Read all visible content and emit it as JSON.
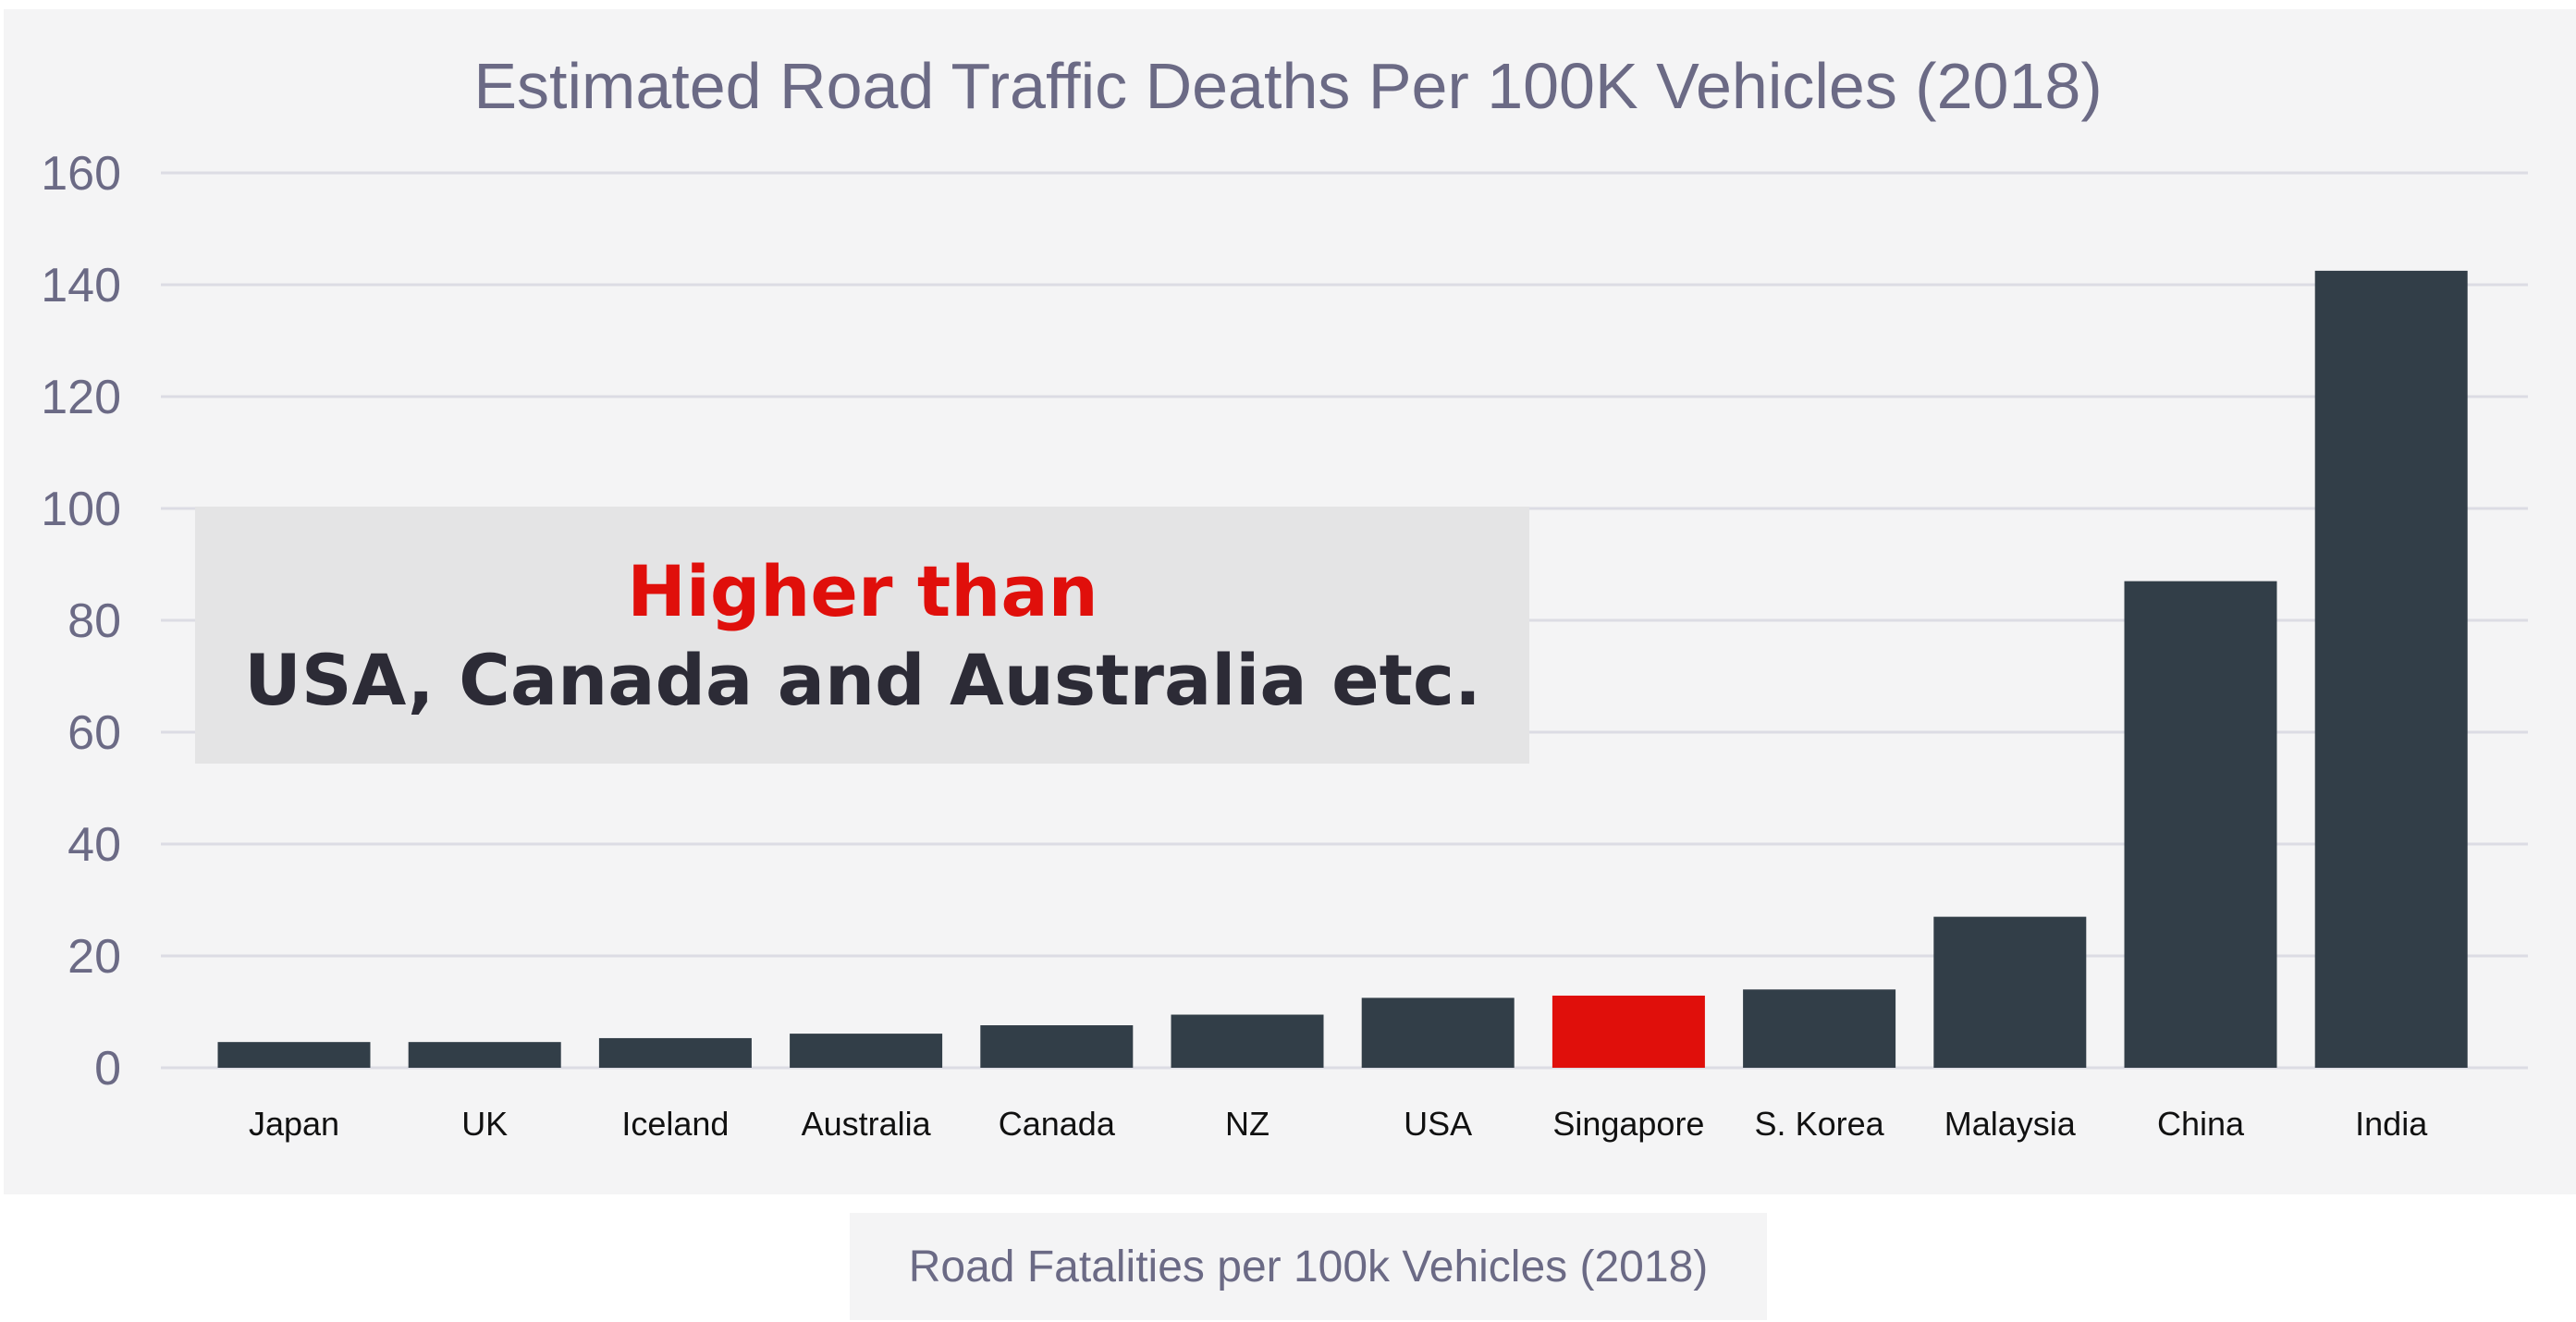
{
  "chart_data": {
    "type": "bar",
    "title": "Estimated Road Traffic Deaths Per 100K Vehicles (2018)",
    "categories": [
      "Japan",
      "UK",
      "Iceland",
      "Australia",
      "Canada",
      "NZ",
      "USA",
      "Singapore",
      "S. Korea",
      "Malaysia",
      "China",
      "India"
    ],
    "series": [
      {
        "name": "Road Fatalities per 100k Vehicles (2018)",
        "values": [
          4.6,
          4.6,
          5.3,
          6.1,
          7.6,
          9.5,
          12.5,
          12.9,
          14.0,
          27.0,
          87.0,
          142.5
        ]
      }
    ],
    "highlight_category": "Singapore",
    "ylim": [
      0,
      160
    ],
    "yticks": [
      0,
      20,
      40,
      60,
      80,
      100,
      120,
      140,
      160
    ],
    "xlabel": "",
    "ylabel": "",
    "grid": true,
    "legend_position": "bottom",
    "colors": {
      "bar": "#323e48",
      "highlight_bar": "#e00f0b",
      "grid": "#dcdce4",
      "axis_text": "#6b6a85",
      "category_text": "#111111",
      "annotation_line1": "#e00f0b",
      "annotation_line2": "#2c2b36",
      "annotation_box": "#e4e4e5"
    },
    "annotation": {
      "line1": "Higher than",
      "line2": "USA, Canada and Australia etc."
    }
  }
}
